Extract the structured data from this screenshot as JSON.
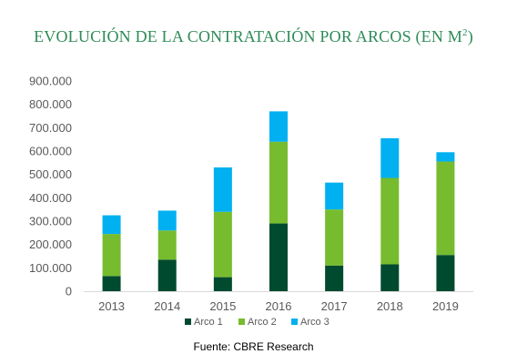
{
  "title": "EVOLUCIÓN DE LA CONTRATACIÓN POR ARCOS (EN M",
  "title_sup": "2",
  "title_end": ")",
  "source": "Fuente: CBRE Research",
  "chart_data": {
    "type": "bar",
    "stacked": true,
    "categories": [
      "2013",
      "2014",
      "2015",
      "2016",
      "2017",
      "2018",
      "2019"
    ],
    "series": [
      {
        "name": "Arco 1",
        "color": "#004a2f",
        "values": [
          65000,
          135000,
          60000,
          290000,
          110000,
          115000,
          155000
        ]
      },
      {
        "name": "Arco 2",
        "color": "#76bc2e",
        "values": [
          180000,
          125000,
          280000,
          350000,
          240000,
          370000,
          400000
        ]
      },
      {
        "name": "Arco 3",
        "color": "#00b0f0",
        "values": [
          80000,
          85000,
          190000,
          130000,
          115000,
          170000,
          40000
        ]
      }
    ],
    "yticks": [
      "0",
      "100.000",
      "200.000",
      "300.000",
      "400.000",
      "500.000",
      "600.000",
      "700.000",
      "800.000",
      "900.000"
    ],
    "ylim": [
      0,
      900000
    ],
    "grid": false,
    "legend_position": "bottom"
  }
}
